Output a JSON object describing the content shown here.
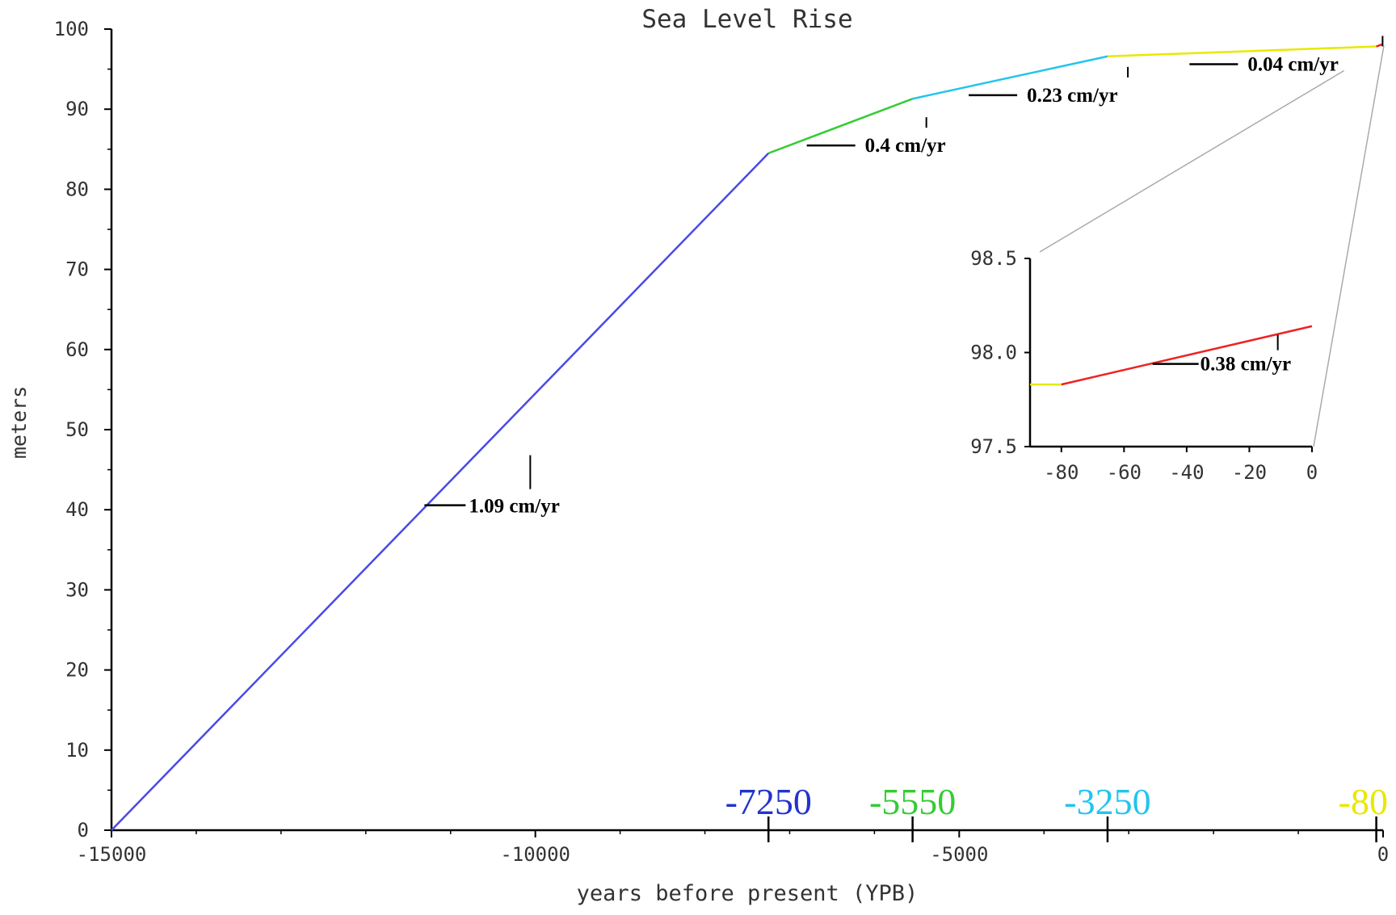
{
  "chart_data": [
    {
      "type": "line",
      "title": "Sea Level Rise",
      "xlabel": "years before present (YPB)",
      "ylabel": "meters",
      "xlim": [
        -15000,
        0
      ],
      "ylim": [
        0,
        100
      ],
      "x_ticks": [
        -15000,
        -10000,
        -5000,
        0
      ],
      "x_tick_labels": [
        "-15000",
        "-10000",
        "-5000",
        "0"
      ],
      "y_ticks": [
        0,
        10,
        20,
        30,
        40,
        50,
        60,
        70,
        80,
        90,
        100
      ],
      "y_tick_labels": [
        "0",
        "10",
        "20",
        "30",
        "40",
        "50",
        "60",
        "70",
        "80",
        "90",
        "100"
      ],
      "grid": false,
      "series": [
        {
          "color": "#4a4ae8",
          "x": [
            -15000,
            -7250
          ],
          "y": [
            0,
            84.5
          ]
        },
        {
          "color": "#33cc33",
          "x": [
            -7250,
            -5550
          ],
          "y": [
            84.5,
            91.3
          ]
        },
        {
          "color": "#22c4ee",
          "x": [
            -5550,
            -3250
          ],
          "y": [
            91.3,
            96.6
          ]
        },
        {
          "color": "#e8e800",
          "x": [
            -3250,
            -80
          ],
          "y": [
            96.6,
            97.83
          ]
        },
        {
          "color": "#ee2222",
          "x": [
            -80,
            0
          ],
          "y": [
            97.83,
            98.14
          ]
        }
      ],
      "breakpoint_labels": [
        {
          "x": -7250,
          "text": "-7250",
          "color": "#2233cc"
        },
        {
          "x": -5550,
          "text": "-5550",
          "color": "#33cc33"
        },
        {
          "x": -3250,
          "text": "-3250",
          "color": "#22c4ee"
        },
        {
          "x": -80,
          "text": "-80",
          "color": "#e8e800"
        }
      ],
      "annotations": [
        {
          "text": "1.09 cm/yr",
          "series": 0
        },
        {
          "text": "0.4 cm/yr",
          "series": 1
        },
        {
          "text": "0.23 cm/yr",
          "series": 2
        },
        {
          "text": "0.04 cm/yr",
          "series": 3
        }
      ]
    },
    {
      "type": "line",
      "title": "",
      "xlim": [
        -90,
        0
      ],
      "ylim": [
        97.5,
        98.5
      ],
      "x_ticks": [
        -80,
        -60,
        -40,
        -20,
        0
      ],
      "x_tick_labels": [
        "-80",
        "-60",
        "-40",
        "-20",
        "0"
      ],
      "y_ticks": [
        97.5,
        98.0,
        98.5
      ],
      "y_tick_labels": [
        "97.5",
        "98.0",
        "98.5"
      ],
      "grid": false,
      "series": [
        {
          "color": "#e8e800",
          "x": [
            -90,
            -80
          ],
          "y": [
            97.83,
            97.83
          ]
        },
        {
          "color": "#ee2222",
          "x": [
            -80,
            0
          ],
          "y": [
            97.83,
            98.14
          ]
        }
      ],
      "annotations": [
        {
          "text": "0.38 cm/yr",
          "series": 1
        }
      ]
    }
  ]
}
